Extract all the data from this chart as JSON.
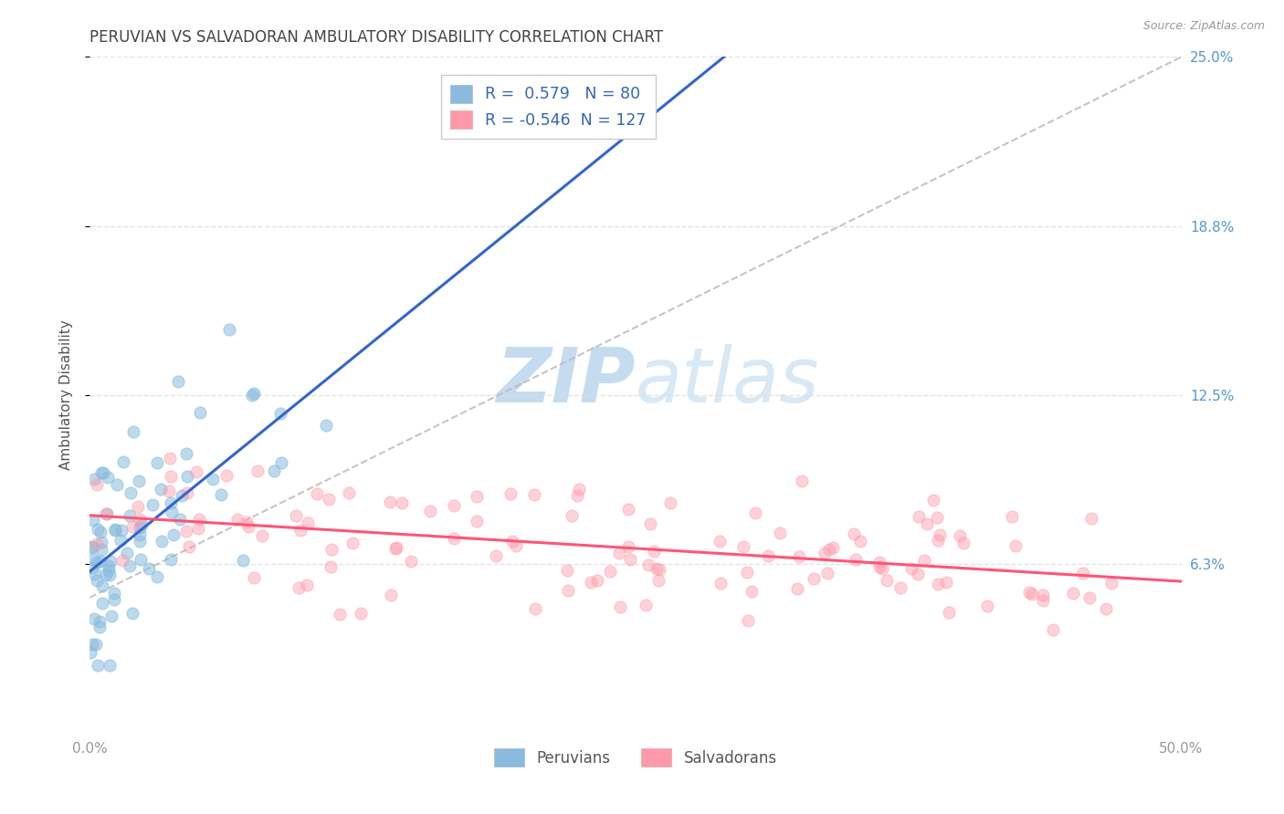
{
  "title": "PERUVIAN VS SALVADORAN AMBULATORY DISABILITY CORRELATION CHART",
  "source": "Source: ZipAtlas.com",
  "xlim": [
    0.0,
    50.0
  ],
  "ylim": [
    0.0,
    25.0
  ],
  "yticks": [
    6.25,
    12.5,
    18.75,
    25.0
  ],
  "ytick_labels": [
    "6.3%",
    "12.5%",
    "18.8%",
    "25.0%"
  ],
  "xtick_vals": [
    0,
    12.5,
    25.0,
    37.5,
    50.0
  ],
  "xtick_labels": [
    "0.0%",
    "",
    "",
    "",
    "50.0%"
  ],
  "peruvian_R": 0.579,
  "peruvian_N": 80,
  "salvadoran_R": -0.546,
  "salvadoran_N": 127,
  "blue_scatter_color": "#88BBDD",
  "pink_scatter_color": "#FF99AA",
  "blue_line_color": "#3366CC",
  "pink_line_color": "#FF5577",
  "gray_dash_color": "#BBBBBB",
  "watermark_color": "#C5DCF0",
  "grid_color": "#DDDDDD",
  "ylabel": "Ambulatory Disability",
  "title_color": "#444444",
  "ytick_color": "#5599CC",
  "xtick_color": "#999999",
  "source_color": "#999999"
}
